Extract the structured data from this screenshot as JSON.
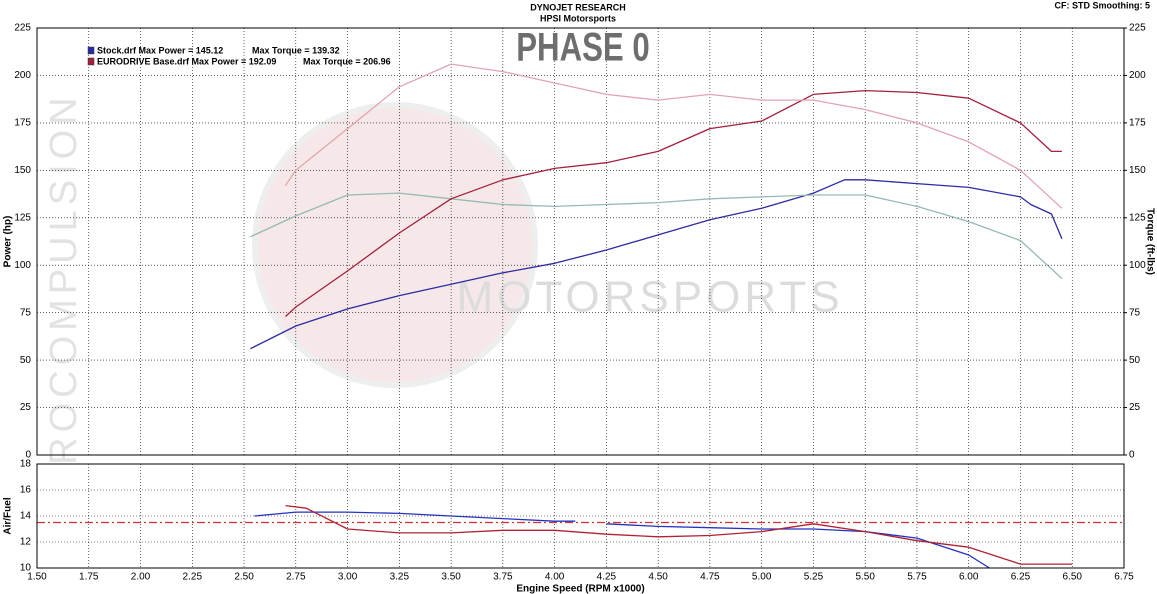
{
  "chart_data": [
    {
      "type": "line",
      "title": "DYNOJET RESEARCH",
      "subtitle": "HPSI Motorsports",
      "annotations": [
        "CF: STD  Smoothing: 5",
        "PHASE 0"
      ],
      "watermarks": [
        "EUROCOMPULSION",
        "MOTORSPORTS"
      ],
      "ylabel": "Power (hp)",
      "y2label": "Torque (ft-lbs)",
      "xlim": [
        1.5,
        6.75
      ],
      "xticks": [
        1.5,
        1.75,
        2,
        2.25,
        2.5,
        2.75,
        3,
        3.25,
        3.5,
        3.75,
        4,
        4.25,
        4.5,
        4.75,
        5,
        5.25,
        5.5,
        5.75,
        6,
        6.25,
        6.5,
        6.75
      ],
      "ylim": [
        0,
        225
      ],
      "yticks": [
        0,
        25,
        50,
        75,
        100,
        125,
        150,
        175,
        200,
        225
      ],
      "y2lim": [
        0,
        225
      ],
      "y2ticks": [
        0,
        25,
        50,
        75,
        100,
        125,
        150,
        175,
        200,
        225
      ],
      "grid": true,
      "legend": "upper left",
      "series": [
        {
          "name": "Stock.drf Max Power = 145.12",
          "color": "#2b2ba6",
          "x": [
            2.53,
            2.75,
            3.0,
            3.25,
            3.5,
            3.75,
            4.0,
            4.25,
            4.5,
            4.75,
            5.0,
            5.25,
            5.4,
            5.5,
            5.75,
            6.0,
            6.25,
            6.3,
            6.4,
            6.45
          ],
          "values": [
            56,
            68,
            77,
            84,
            90,
            96,
            101,
            108,
            116,
            124,
            130,
            138,
            145,
            145,
            143,
            141,
            136,
            132,
            127,
            114
          ]
        },
        {
          "name": "Max Torque = 139.32",
          "color": "#93bab6",
          "axis": "y2",
          "x": [
            2.53,
            2.75,
            3.0,
            3.25,
            3.5,
            3.75,
            4.0,
            4.25,
            4.5,
            4.75,
            5.0,
            5.25,
            5.5,
            5.75,
            6.0,
            6.25,
            6.45
          ],
          "values": [
            115,
            126,
            137,
            138,
            135,
            132,
            131,
            132,
            133,
            135,
            136,
            137,
            137,
            131,
            123,
            113,
            93
          ]
        },
        {
          "name": "EURODRIVE Base.drf Max Power = 192.09",
          "color": "#a3203c",
          "x": [
            2.7,
            2.75,
            3.0,
            3.25,
            3.5,
            3.75,
            4.0,
            4.25,
            4.5,
            4.75,
            5.0,
            5.25,
            5.5,
            5.75,
            6.0,
            6.25,
            6.4,
            6.45
          ],
          "values": [
            73,
            78,
            97,
            117,
            135,
            145,
            151,
            154,
            160,
            172,
            176,
            190,
            192,
            191,
            188,
            175,
            160,
            160
          ]
        },
        {
          "name": "Max Torque = 206.96",
          "color": "#e2a3b2",
          "axis": "y2",
          "x": [
            2.7,
            2.75,
            3.0,
            3.25,
            3.5,
            3.75,
            4.0,
            4.25,
            4.5,
            4.75,
            5.0,
            5.25,
            5.5,
            5.75,
            6.0,
            6.25,
            6.45
          ],
          "values": [
            142,
            150,
            172,
            194,
            206,
            202,
            196,
            190,
            187,
            190,
            187,
            187,
            182,
            175,
            165,
            150,
            130
          ]
        }
      ]
    },
    {
      "type": "line",
      "ylabel": "Air/Fuel",
      "xlabel": "Engine Speed (RPM x1000)",
      "xlim": [
        1.5,
        6.75
      ],
      "xticks": [
        {
          "value": 1.5,
          "label": "1.50"
        },
        {
          "value": 1.75,
          "label": "1.75"
        },
        {
          "value": 2,
          "label": "2.00"
        },
        {
          "value": 2.25,
          "label": "2.25"
        },
        {
          "value": 2.5,
          "label": "2.50"
        },
        {
          "value": 2.75,
          "label": "2.75"
        },
        {
          "value": 3,
          "label": "3.00"
        },
        {
          "value": 3.25,
          "label": "3.25"
        },
        {
          "value": 3.5,
          "label": "3.50"
        },
        {
          "value": 3.75,
          "label": "3.75"
        },
        {
          "value": 4,
          "label": "4.00"
        },
        {
          "value": 4.25,
          "label": "4.25"
        },
        {
          "value": 4.5,
          "label": "4.50"
        },
        {
          "value": 4.75,
          "label": "4.75"
        },
        {
          "value": 5,
          "label": "5.00"
        },
        {
          "value": 5.25,
          "label": "5.25"
        },
        {
          "value": 5.5,
          "label": "5.50"
        },
        {
          "value": 5.75,
          "label": "5.75"
        },
        {
          "value": 6,
          "label": "6.00"
        },
        {
          "value": 6.25,
          "label": "6.25"
        },
        {
          "value": 6.5,
          "label": "6.50"
        },
        {
          "value": 6.75,
          "label": "6.75"
        }
      ],
      "ylim": [
        10,
        18
      ],
      "yticks": [
        10,
        12,
        14,
        16,
        18
      ],
      "grid": true,
      "ref_line": {
        "value": 13.5,
        "color": "#d83030"
      },
      "series": [
        {
          "color": "#2233c2",
          "x": [
            2.55,
            2.75,
            3.0,
            3.25,
            3.5,
            3.75,
            4.0,
            4.1,
            4.17,
            4.25,
            4.5,
            4.75,
            5.0,
            5.25,
            5.5,
            5.75,
            6.0,
            6.1
          ],
          "values": [
            14.0,
            14.3,
            14.3,
            14.2,
            14.0,
            13.8,
            13.6,
            13.6,
            null,
            13.4,
            13.2,
            13.1,
            13.0,
            13.0,
            12.8,
            12.3,
            11.0,
            10.0
          ]
        },
        {
          "color": "#b02233",
          "x": [
            2.7,
            2.8,
            3.0,
            3.25,
            3.5,
            3.75,
            4.0,
            4.25,
            4.5,
            4.75,
            5.0,
            5.25,
            5.5,
            5.75,
            6.0,
            6.25,
            6.5
          ],
          "values": [
            14.8,
            14.6,
            13.0,
            12.7,
            12.7,
            12.9,
            12.9,
            12.6,
            12.4,
            12.5,
            12.8,
            13.4,
            12.8,
            12.1,
            11.6,
            10.3,
            10.3
          ]
        }
      ]
    }
  ]
}
